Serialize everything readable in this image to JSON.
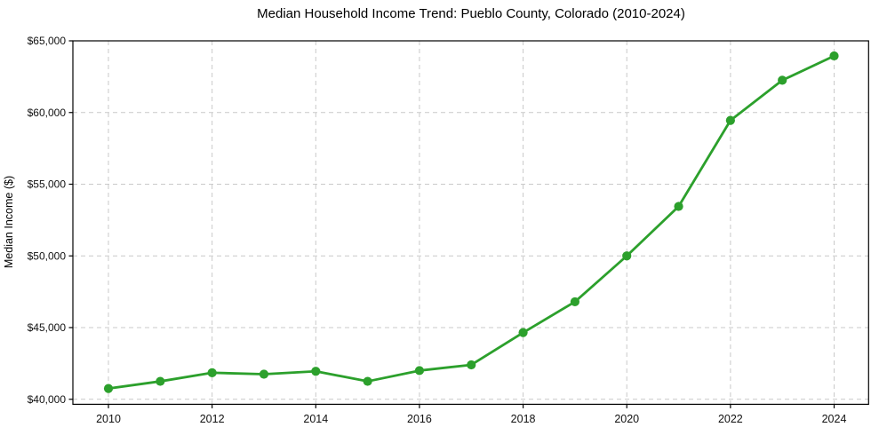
{
  "chart_data": {
    "type": "line",
    "title": "Median Household Income Trend: Pueblo County, Colorado (2010-2024)",
    "xlabel": "",
    "ylabel": "Median Income ($)",
    "x": [
      2010,
      2011,
      2012,
      2013,
      2014,
      2015,
      2016,
      2017,
      2018,
      2019,
      2020,
      2021,
      2022,
      2023,
      2024
    ],
    "values": [
      40750,
      41250,
      41850,
      41750,
      41950,
      41250,
      42000,
      42400,
      44650,
      46800,
      50000,
      53450,
      59450,
      62250,
      63950
    ],
    "series_name": "Median Household Income",
    "x_ticks": [
      2010,
      2012,
      2014,
      2016,
      2018,
      2020,
      2022,
      2024
    ],
    "x_tick_labels": [
      "2010",
      "2012",
      "2014",
      "2016",
      "2018",
      "2020",
      "2022",
      "2024"
    ],
    "y_ticks": [
      40000,
      45000,
      50000,
      55000,
      60000,
      65000
    ],
    "y_tick_labels": [
      "$40,000",
      "$45,000",
      "$50,000",
      "$55,000",
      "$60,000",
      "$65,000"
    ],
    "xlim": [
      2009.314,
      2024.665
    ],
    "ylim": [
      39650,
      65000
    ],
    "grid": true,
    "grid_style": "dashed",
    "legend_position": "none",
    "colors": {
      "line": "#2ca02c",
      "marker": "#2ca02c",
      "grid": "#c9c9c9",
      "spine": "#000000",
      "background": "#ffffff",
      "text": "#111111"
    }
  }
}
